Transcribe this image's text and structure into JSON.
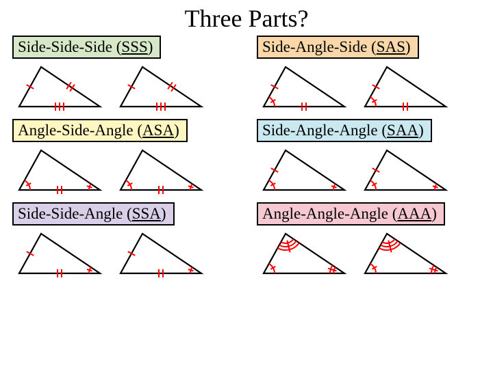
{
  "title": "Three Parts?",
  "colors": {
    "stroke": "#000000",
    "mark": "#ff0000",
    "bg": "#ffffff",
    "sss": "#d6e8c8",
    "asa": "#fff7c2",
    "ssa": "#d9cfe8",
    "sas": "#f9d7a8",
    "saa": "#c9e8f0",
    "aaa": "#f6c9d2"
  },
  "cells": [
    {
      "id": "sss",
      "prefix": "Side-Side-Side (",
      "abbr": "SSS",
      "suffix": ")",
      "bgKey": "sss"
    },
    {
      "id": "sas",
      "prefix": "Side-Angle-Side (",
      "abbr": "SAS",
      "suffix": ")",
      "bgKey": "sas"
    },
    {
      "id": "asa",
      "prefix": "Angle-Side-Angle (",
      "abbr": "ASA",
      "suffix": ")",
      "bgKey": "asa"
    },
    {
      "id": "saa",
      "prefix": "Side-Angle-Angle (",
      "abbr": "SAA",
      "suffix": ")",
      "bgKey": "saa"
    },
    {
      "id": "ssa",
      "prefix": "Side-Side-Angle (",
      "abbr": "SSA",
      "suffix": ")",
      "bgKey": "ssa"
    },
    {
      "id": "aaa",
      "prefix": "Angle-Angle-Angle (",
      "abbr": "AAA",
      "suffix": ")",
      "bgKey": "aaa"
    }
  ],
  "triangle": {
    "width": 130,
    "height": 78,
    "points": {
      "A": [
        38,
        8
      ],
      "B": [
        6,
        66
      ],
      "C": [
        124,
        66
      ]
    },
    "strokeWidth": 2.2,
    "markStrokeWidth": 2.0
  }
}
